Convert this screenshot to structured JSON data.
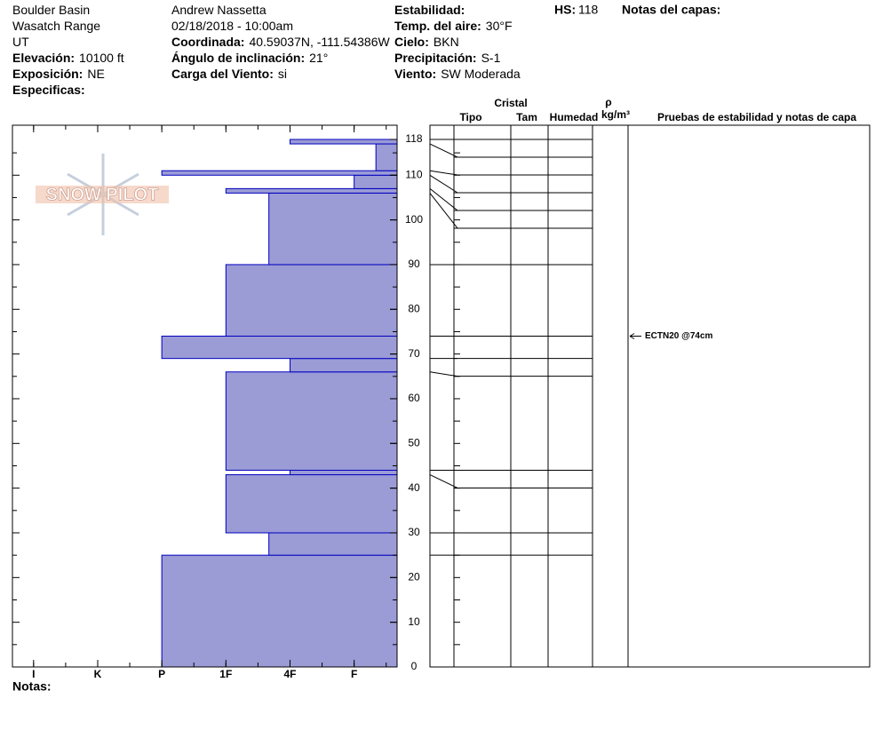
{
  "header": {
    "columns": [
      [
        {
          "value": "Boulder Basin"
        },
        {
          "value": "Wasatch Range"
        },
        {
          "value": "UT"
        },
        {
          "label": "Elevación:",
          "value": "10100 ft"
        },
        {
          "label": "Exposición:",
          "value": "NE"
        },
        {
          "label": "Especificas:"
        }
      ],
      [
        {
          "value": "Andrew Nassetta"
        },
        {
          "value": "02/18/2018 - 10:00am"
        },
        {
          "label": "Coordinada:",
          "value": "40.59037N, -111.54386W"
        },
        {
          "label": "Ángulo de inclinación:",
          "value": "21°"
        },
        {
          "label": "Carga del Viento:",
          "value": "si"
        }
      ],
      [
        {
          "label": "Estabilidad:"
        },
        {
          "label": "Temp. del aire:",
          "value": "30°F"
        },
        {
          "label": "Cielo:",
          "value": "BKN"
        },
        {
          "label": "Precipitación:",
          "value": "S-1"
        },
        {
          "label": "Viento:",
          "value": "SW Moderada"
        }
      ]
    ],
    "hs": {
      "label": "HS:",
      "value": 118
    },
    "layer_notes": "Notas del capas:"
  },
  "logo": "SNOW PILOT",
  "footer": "Notas:",
  "columns": {
    "crystal": "Cristal",
    "type": "Tipo",
    "size": "Tam",
    "moisture": "Humedad",
    "density_symbol": "ρ",
    "density_unit": "kg/m³",
    "tests": "Pruebas de estabilidad y notas de capa"
  },
  "chart_data": {
    "type": "hardness-profile",
    "xlim": [
      5.33,
      -0.67
    ],
    "xticks": [
      {
        "value": 5,
        "label": "I"
      },
      {
        "value": 4,
        "label": "K"
      },
      {
        "value": 3,
        "label": "P"
      },
      {
        "value": 2,
        "label": "1F"
      },
      {
        "value": 1,
        "label": "4F"
      },
      {
        "value": 0,
        "label": "F"
      }
    ],
    "ylim": [
      0,
      118
    ],
    "yticks": [
      0,
      10,
      20,
      30,
      40,
      50,
      60,
      70,
      80,
      90,
      100,
      110,
      118
    ],
    "color": "#9b9bd6",
    "layers": {
      "bottom": [
        0,
        25,
        30,
        43,
        44,
        66,
        69,
        74,
        90,
        106,
        107,
        110,
        111,
        117
      ],
      "top": [
        25,
        30,
        43,
        44,
        66,
        69,
        74,
        90,
        106,
        107,
        110,
        111,
        117,
        118
      ],
      "hardness": [
        3,
        1.33,
        2,
        1,
        2,
        1,
        3,
        2,
        1.33,
        2,
        0,
        3,
        -0.34,
        1
      ]
    },
    "tests": [
      {
        "text": "ECTN20 @74cm",
        "depth": 74
      }
    ]
  }
}
